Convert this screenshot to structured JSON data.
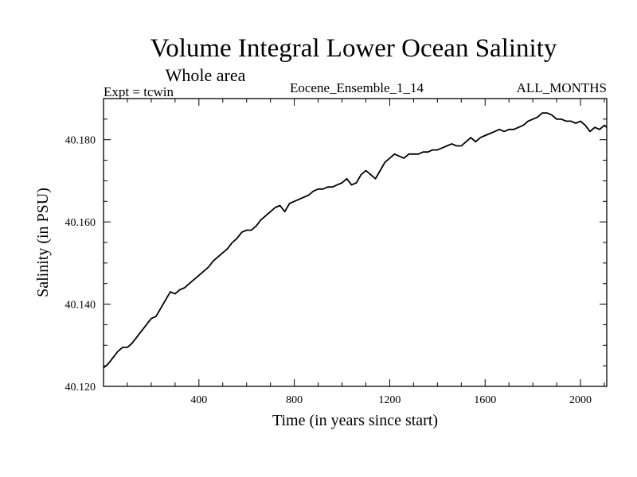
{
  "chart_data": {
    "type": "line",
    "title": "Volume Integral Lower Ocean Salinity",
    "subtitle": "Whole area",
    "header_left": "Expt = tcwin",
    "header_center": "Eocene_Ensemble_1_14",
    "header_right": "ALL_MONTHS",
    "xlabel": "Time (in years since start)",
    "ylabel": "Salinity (in PSU)",
    "xlim": [
      0,
      2110
    ],
    "ylim": [
      40.12,
      40.19
    ],
    "x_ticks": [
      400,
      800,
      1200,
      1600,
      2000
    ],
    "x_tick_labels": [
      "400",
      "800",
      "1200",
      "1600",
      "2000"
    ],
    "y_ticks": [
      40.12,
      40.14,
      40.16,
      40.18
    ],
    "y_tick_labels": [
      "40.120",
      "40.140",
      "40.160",
      "40.180"
    ],
    "grid": false,
    "series": [
      {
        "color": "#000000",
        "x": [
          0,
          20,
          40,
          60,
          80,
          100,
          120,
          140,
          160,
          180,
          200,
          220,
          240,
          260,
          280,
          300,
          320,
          340,
          360,
          380,
          400,
          420,
          440,
          460,
          480,
          500,
          520,
          540,
          560,
          580,
          600,
          620,
          640,
          660,
          680,
          700,
          720,
          740,
          760,
          780,
          800,
          820,
          840,
          860,
          880,
          900,
          920,
          940,
          960,
          980,
          1000,
          1020,
          1040,
          1060,
          1080,
          1100,
          1120,
          1140,
          1160,
          1180,
          1200,
          1220,
          1240,
          1260,
          1280,
          1300,
          1320,
          1340,
          1360,
          1380,
          1400,
          1420,
          1440,
          1460,
          1480,
          1500,
          1520,
          1540,
          1560,
          1580,
          1600,
          1620,
          1640,
          1660,
          1680,
          1700,
          1720,
          1740,
          1760,
          1780,
          1800,
          1820,
          1840,
          1860,
          1880,
          1900,
          1920,
          1940,
          1960,
          1980,
          2000,
          2020,
          2040,
          2060,
          2080,
          2100,
          2110
        ],
        "y": [
          40.1245,
          40.1255,
          40.127,
          40.1285,
          40.1295,
          40.1295,
          40.1305,
          40.132,
          40.1335,
          40.135,
          40.1365,
          40.137,
          40.139,
          40.141,
          40.143,
          40.1425,
          40.1435,
          40.144,
          40.145,
          40.146,
          40.147,
          40.148,
          40.149,
          40.1505,
          40.1515,
          40.1525,
          40.1535,
          40.155,
          40.156,
          40.1575,
          40.158,
          40.158,
          40.159,
          40.1605,
          40.1615,
          40.1625,
          40.1635,
          40.164,
          40.1625,
          40.1645,
          40.165,
          40.1655,
          40.166,
          40.1665,
          40.1675,
          40.168,
          40.168,
          40.1685,
          40.1685,
          40.169,
          40.1695,
          40.1705,
          40.169,
          40.1695,
          40.1715,
          40.1725,
          40.1715,
          40.1705,
          40.1725,
          40.1745,
          40.1755,
          40.1765,
          40.176,
          40.1755,
          40.1765,
          40.1765,
          40.1765,
          40.177,
          40.177,
          40.1775,
          40.1775,
          40.178,
          40.1785,
          40.179,
          40.1785,
          40.1785,
          40.1795,
          40.1805,
          40.1795,
          40.1805,
          40.181,
          40.1815,
          40.182,
          40.1825,
          40.182,
          40.1825,
          40.1825,
          40.183,
          40.1835,
          40.1845,
          40.185,
          40.1855,
          40.1865,
          40.1865,
          40.186,
          40.185,
          40.185,
          40.1845,
          40.1845,
          40.184,
          40.1845,
          40.1835,
          40.182,
          40.183,
          40.1825,
          40.1835,
          40.183
        ]
      }
    ]
  }
}
